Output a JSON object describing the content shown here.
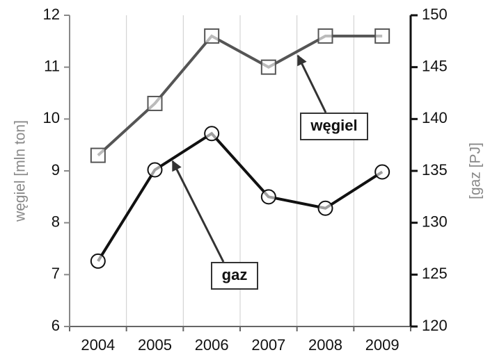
{
  "chart_data": {
    "type": "line",
    "categories": [
      "2004",
      "2005",
      "2006",
      "2007",
      "2008",
      "2009"
    ],
    "series": [
      {
        "name": "węgiel",
        "color": "#555555",
        "marker": "square",
        "values": [
          9.3,
          10.3,
          11.6,
          11.0,
          11.6,
          11.6
        ]
      },
      {
        "name": "gaz",
        "color": "#111111",
        "marker": "circle",
        "axis": "y2",
        "values": [
          126.3,
          135.1,
          138.6,
          132.5,
          131.4,
          134.9
        ]
      }
    ],
    "ylabel": "węgiel [mln ton]",
    "y2label": "[gaz [PJ]",
    "ylim": [
      6,
      12
    ],
    "yticks": [
      6,
      7,
      8,
      9,
      10,
      11,
      12
    ],
    "y2lim": [
      120,
      150
    ],
    "y2ticks": [
      120,
      125,
      130,
      135,
      140,
      145,
      150
    ],
    "annotations": [
      {
        "text": "węgiel"
      },
      {
        "text": "gaz"
      }
    ]
  }
}
